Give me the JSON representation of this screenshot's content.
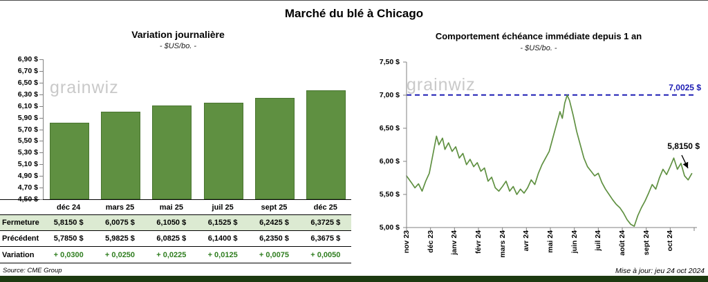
{
  "page": {
    "title": "Marché du blé à Chicago",
    "watermark": "grainwiz",
    "source": "Source: CME Group",
    "updated": "Mise à jour: jeu 24 oct 2024"
  },
  "colors": {
    "green": "#5f9041",
    "green_border": "#48742f",
    "blue": "#1b1bb3",
    "table_green_bg": "#dcead2",
    "variation_green": "#2e7d1e",
    "footer_bar": "#1d3a10",
    "axis_gray": "#808080"
  },
  "chart_data": [
    {
      "type": "bar",
      "title": "Variation journalière",
      "subtitle": "- $US/bo. -",
      "categories": [
        "déc 24",
        "mars 25",
        "mai 25",
        "juil 25",
        "sept 25",
        "déc 25"
      ],
      "values": [
        5.815,
        6.0075,
        6.105,
        6.1525,
        6.2425,
        6.3725
      ],
      "ylim": [
        4.5,
        6.9
      ],
      "ytick_step": 0.2,
      "ytick_labels": [
        "6,90 $",
        "6,70 $",
        "6,50 $",
        "6,30 $",
        "6,10 $",
        "5,90 $",
        "5,70 $",
        "5,50 $",
        "5,30 $",
        "5,10 $",
        "4,90 $",
        "4,70 $",
        "4,50 $"
      ],
      "grid": false,
      "legend": "none"
    },
    {
      "type": "line",
      "title": "Comportement échéance immédiate depuis 1 an",
      "subtitle": "- $US/bo. -",
      "x_labels": [
        "nov 23",
        "déc 23",
        "janv 24",
        "févr 24",
        "mars 24",
        "avr 24",
        "mai 24",
        "juin 24",
        "juil 24",
        "août 24",
        "sept 24",
        "oct 24"
      ],
      "ylim": [
        5.0,
        7.5
      ],
      "xlim": [
        0,
        12
      ],
      "ytick_labels": [
        "7,50 $",
        "7,00 $",
        "6,50 $",
        "6,00 $",
        "5,50 $",
        "5,00 $"
      ],
      "grid": false,
      "legend": "none",
      "reference_line": {
        "value": 7.0025,
        "label": "7,0025 $",
        "style": "dashed-blue"
      },
      "last_point_label": "5,8150 $",
      "series": [
        {
          "name": "échéance immédiate",
          "x": [
            0,
            0.2,
            0.35,
            0.5,
            0.65,
            0.8,
            0.95,
            1.1,
            1.25,
            1.35,
            1.5,
            1.6,
            1.75,
            1.9,
            2.05,
            2.2,
            2.35,
            2.5,
            2.65,
            2.8,
            2.95,
            3.1,
            3.25,
            3.4,
            3.55,
            3.7,
            3.85,
            4.0,
            4.15,
            4.3,
            4.45,
            4.6,
            4.75,
            4.9,
            5.05,
            5.2,
            5.35,
            5.5,
            5.65,
            5.8,
            5.95,
            6.1,
            6.25,
            6.4,
            6.5,
            6.6,
            6.7,
            6.8,
            6.95,
            7.1,
            7.25,
            7.4,
            7.55,
            7.7,
            7.85,
            8.0,
            8.15,
            8.3,
            8.45,
            8.6,
            8.75,
            8.9,
            9.05,
            9.2,
            9.35,
            9.5,
            9.65,
            9.8,
            9.95,
            10.1,
            10.25,
            10.4,
            10.55,
            10.7,
            10.85,
            11.0,
            11.15,
            11.3,
            11.45,
            11.6,
            11.75,
            11.9
          ],
          "y": [
            5.78,
            5.68,
            5.6,
            5.66,
            5.55,
            5.7,
            5.82,
            6.1,
            6.38,
            6.25,
            6.35,
            6.18,
            6.28,
            6.15,
            6.22,
            6.05,
            6.12,
            5.95,
            6.03,
            5.92,
            5.98,
            5.85,
            5.9,
            5.7,
            5.76,
            5.6,
            5.55,
            5.62,
            5.7,
            5.55,
            5.62,
            5.5,
            5.58,
            5.52,
            5.6,
            5.72,
            5.65,
            5.82,
            5.95,
            6.05,
            6.15,
            6.35,
            6.55,
            6.75,
            6.65,
            6.88,
            7.0,
            6.92,
            6.7,
            6.45,
            6.25,
            6.05,
            5.92,
            5.85,
            5.78,
            5.82,
            5.68,
            5.58,
            5.5,
            5.42,
            5.35,
            5.3,
            5.22,
            5.12,
            5.05,
            5.02,
            5.18,
            5.3,
            5.4,
            5.52,
            5.65,
            5.58,
            5.75,
            5.88,
            5.8,
            5.92,
            6.05,
            5.88,
            5.97,
            5.78,
            5.72,
            5.815
          ]
        }
      ]
    }
  ],
  "table": {
    "rows": [
      {
        "style": "closing",
        "label": "Fermeture",
        "values": [
          "5,8150  $",
          "6,0075  $",
          "6,1050  $",
          "6,1525  $",
          "6,2425  $",
          "6,3725  $"
        ]
      },
      {
        "style": "previous",
        "label": "Précédent",
        "values": [
          "5,7850  $",
          "5,9825  $",
          "6,0825  $",
          "6,1400  $",
          "6,2350  $",
          "6,3675  $"
        ]
      },
      {
        "style": "variation",
        "label": "Variation",
        "values": [
          "+ 0,0300",
          "+ 0,0250",
          "+ 0,0225",
          "+ 0,0125",
          "+ 0,0075",
          "+ 0,0050"
        ]
      }
    ]
  }
}
